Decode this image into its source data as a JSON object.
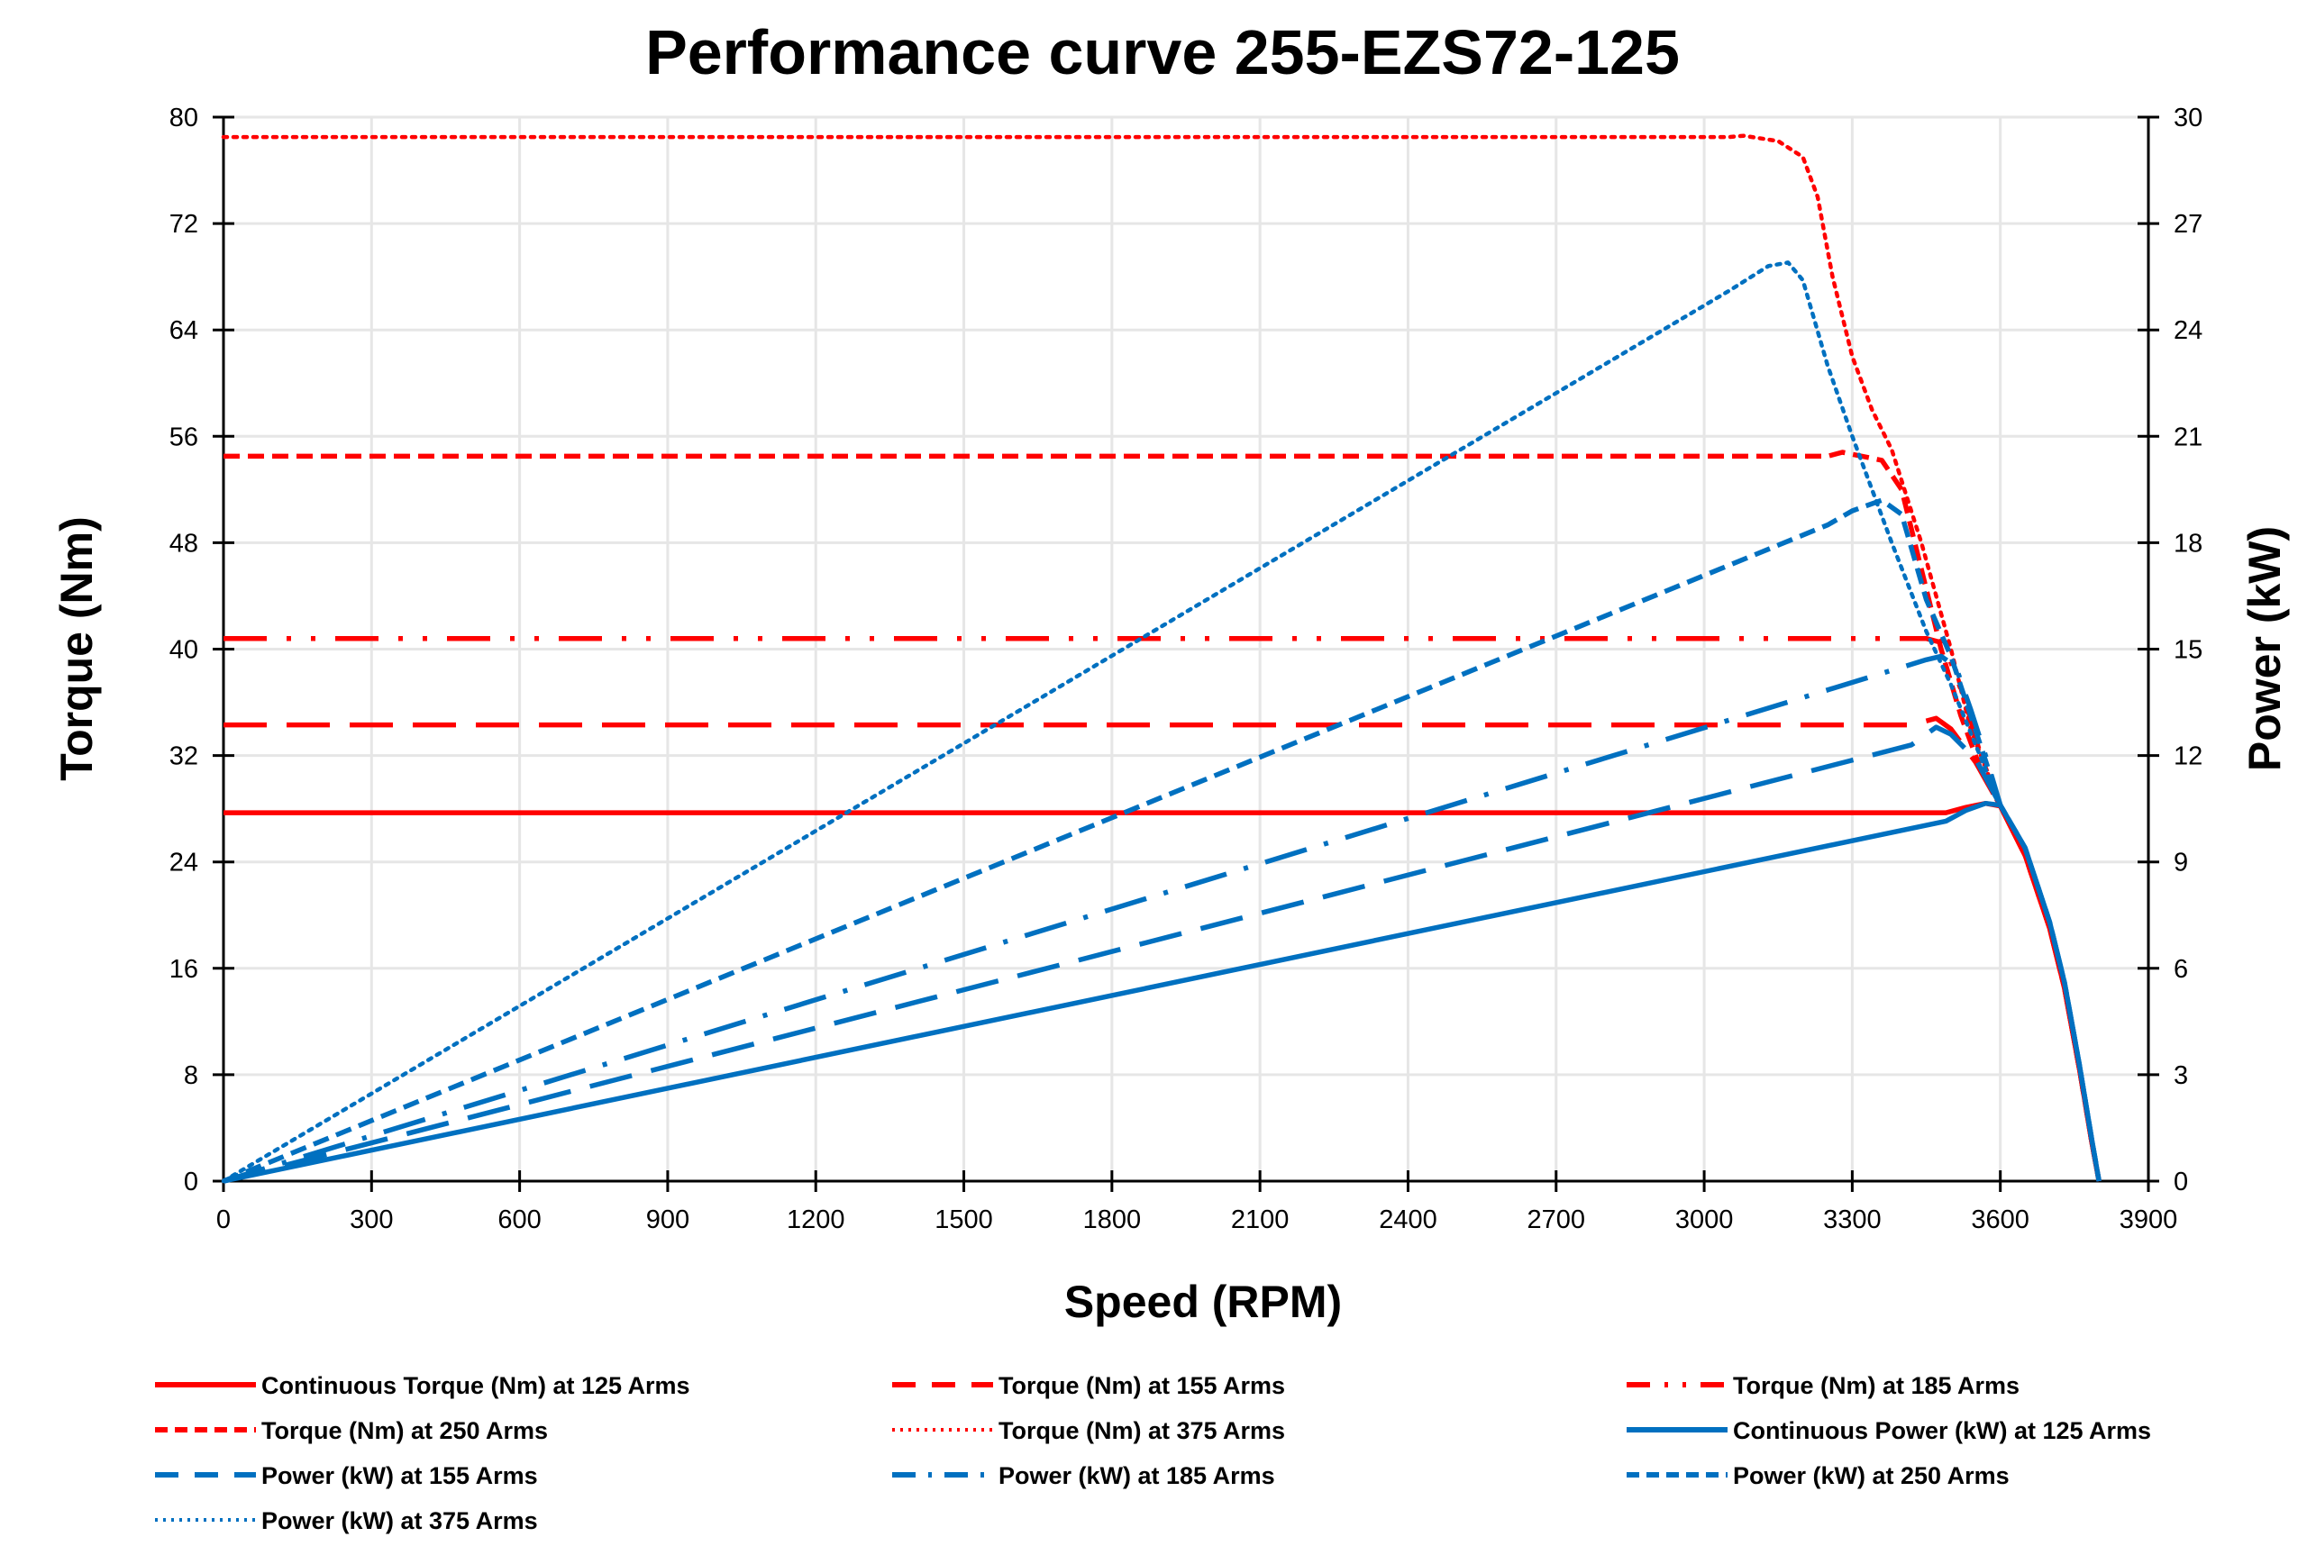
{
  "chart_data": {
    "type": "line",
    "title": "Performance curve 255-EZS72-125",
    "xlabel": "Speed (RPM)",
    "ylabel": "Torque (Nm)",
    "y2label": "Power (kW)",
    "xlim": [
      0,
      3900
    ],
    "ylim": [
      0,
      80
    ],
    "y2lim": [
      0,
      30
    ],
    "xticks": [
      0,
      300,
      600,
      900,
      1200,
      1500,
      1800,
      2100,
      2400,
      2700,
      3000,
      3300,
      3600,
      3900
    ],
    "yticks": [
      0,
      8,
      16,
      24,
      32,
      40,
      48,
      56,
      64,
      72,
      80
    ],
    "y2ticks": [
      0,
      3,
      6,
      9,
      12,
      15,
      18,
      21,
      24,
      27,
      30
    ],
    "grid": true,
    "legend_position": "bottom",
    "colors": {
      "torque": "#ff0000",
      "power": "#0070c0"
    },
    "series": [
      {
        "name": "Continuous Torque (Nm) at 125 Arms",
        "axis": "left",
        "color": "#ff0000",
        "style": "solid",
        "points": [
          [
            0,
            27.7
          ],
          [
            3490,
            27.7
          ],
          [
            3530,
            28.1
          ],
          [
            3570,
            28.4
          ],
          [
            3600,
            28.2
          ],
          [
            3650,
            24.5
          ],
          [
            3700,
            19
          ],
          [
            3730,
            14.5
          ],
          [
            3760,
            8.5
          ],
          [
            3785,
            3
          ],
          [
            3800,
            0
          ]
        ]
      },
      {
        "name": "Torque (Nm) at 155 Arms",
        "axis": "left",
        "color": "#ff0000",
        "style": "longdash",
        "points": [
          [
            0,
            34.3
          ],
          [
            3420,
            34.3
          ],
          [
            3470,
            34.8
          ],
          [
            3500,
            34
          ],
          [
            3550,
            31.5
          ],
          [
            3600,
            28.2
          ],
          [
            3650,
            24.5
          ],
          [
            3700,
            19
          ],
          [
            3730,
            14.5
          ],
          [
            3760,
            8.5
          ],
          [
            3785,
            3
          ],
          [
            3800,
            0
          ]
        ]
      },
      {
        "name": "Torque (Nm) at 185 Arms",
        "axis": "left",
        "color": "#ff0000",
        "style": "longdashdotdot",
        "points": [
          [
            0,
            40.8
          ],
          [
            3450,
            40.8
          ],
          [
            3480,
            40.5
          ],
          [
            3500,
            39
          ],
          [
            3530,
            36
          ],
          [
            3560,
            32
          ],
          [
            3600,
            28.2
          ],
          [
            3650,
            24.5
          ],
          [
            3700,
            19
          ],
          [
            3730,
            14.5
          ],
          [
            3760,
            8.5
          ],
          [
            3785,
            3
          ],
          [
            3800,
            0
          ]
        ]
      },
      {
        "name": "Torque (Nm) at 250 Arms",
        "axis": "left",
        "color": "#ff0000",
        "style": "shortdash",
        "points": [
          [
            0,
            54.5
          ],
          [
            3250,
            54.5
          ],
          [
            3280,
            54.8
          ],
          [
            3360,
            54.2
          ],
          [
            3400,
            52
          ],
          [
            3440,
            46
          ],
          [
            3480,
            40
          ],
          [
            3520,
            35
          ],
          [
            3560,
            31
          ],
          [
            3600,
            28.2
          ],
          [
            3650,
            24.5
          ],
          [
            3700,
            19
          ],
          [
            3730,
            14.5
          ],
          [
            3760,
            8.5
          ],
          [
            3785,
            3
          ],
          [
            3800,
            0
          ]
        ]
      },
      {
        "name": "Torque (Nm) at 375 Arms",
        "axis": "left",
        "color": "#ff0000",
        "style": "dotted",
        "points": [
          [
            0,
            78.5
          ],
          [
            3050,
            78.5
          ],
          [
            3080,
            78.6
          ],
          [
            3150,
            78.2
          ],
          [
            3200,
            77
          ],
          [
            3230,
            74
          ],
          [
            3260,
            68
          ],
          [
            3300,
            62
          ],
          [
            3340,
            58
          ],
          [
            3380,
            55
          ],
          [
            3440,
            48
          ],
          [
            3500,
            40
          ],
          [
            3540,
            34
          ],
          [
            3600,
            28.2
          ],
          [
            3650,
            24.5
          ],
          [
            3700,
            19
          ],
          [
            3730,
            14.5
          ],
          [
            3760,
            8.5
          ],
          [
            3785,
            3
          ],
          [
            3800,
            0
          ]
        ]
      },
      {
        "name": "Continuous Power (kW) at 125 Arms",
        "axis": "right",
        "color": "#0070c0",
        "style": "solid",
        "points": [
          [
            0,
            0
          ],
          [
            3490,
            10.15
          ],
          [
            3530,
            10.45
          ],
          [
            3570,
            10.65
          ],
          [
            3600,
            10.6
          ],
          [
            3650,
            9.4
          ],
          [
            3700,
            7.3
          ],
          [
            3730,
            5.6
          ],
          [
            3760,
            3.3
          ],
          [
            3785,
            1.2
          ],
          [
            3800,
            0
          ]
        ]
      },
      {
        "name": "Power (kW) at 155 Arms",
        "axis": "right",
        "color": "#0070c0",
        "style": "longdash",
        "points": [
          [
            0,
            0
          ],
          [
            3420,
            12.3
          ],
          [
            3470,
            12.8
          ],
          [
            3500,
            12.6
          ],
          [
            3550,
            11.9
          ],
          [
            3600,
            10.6
          ],
          [
            3650,
            9.4
          ],
          [
            3700,
            7.3
          ],
          [
            3730,
            5.6
          ],
          [
            3760,
            3.3
          ],
          [
            3785,
            1.2
          ],
          [
            3800,
            0
          ]
        ]
      },
      {
        "name": "Power (kW) at 185 Arms",
        "axis": "right",
        "color": "#0070c0",
        "style": "dashdot",
        "points": [
          [
            0,
            0
          ],
          [
            3450,
            14.7
          ],
          [
            3480,
            14.8
          ],
          [
            3510,
            14.5
          ],
          [
            3540,
            13.3
          ],
          [
            3570,
            12
          ],
          [
            3600,
            10.6
          ],
          [
            3650,
            9.4
          ],
          [
            3700,
            7.3
          ],
          [
            3730,
            5.6
          ],
          [
            3760,
            3.3
          ],
          [
            3785,
            1.2
          ],
          [
            3800,
            0
          ]
        ]
      },
      {
        "name": "Power (kW) at 250 Arms",
        "axis": "right",
        "color": "#0070c0",
        "style": "shortdash",
        "points": [
          [
            0,
            0
          ],
          [
            3250,
            18.5
          ],
          [
            3300,
            18.9
          ],
          [
            3360,
            19.2
          ],
          [
            3400,
            18.8
          ],
          [
            3450,
            16.4
          ],
          [
            3500,
            14.8
          ],
          [
            3550,
            12.7
          ],
          [
            3600,
            10.6
          ],
          [
            3650,
            9.4
          ],
          [
            3700,
            7.3
          ],
          [
            3730,
            5.6
          ],
          [
            3760,
            3.3
          ],
          [
            3785,
            1.2
          ],
          [
            3800,
            0
          ]
        ]
      },
      {
        "name": "Power (kW) at 375 Arms",
        "axis": "right",
        "color": "#0070c0",
        "style": "dotted",
        "points": [
          [
            0,
            0
          ],
          [
            3050,
            25.1
          ],
          [
            3130,
            25.8
          ],
          [
            3170,
            25.9
          ],
          [
            3200,
            25.4
          ],
          [
            3250,
            23
          ],
          [
            3300,
            21
          ],
          [
            3380,
            18
          ],
          [
            3450,
            15.5
          ],
          [
            3500,
            14
          ],
          [
            3550,
            12.3
          ],
          [
            3600,
            10.6
          ],
          [
            3650,
            9.4
          ],
          [
            3700,
            7.3
          ],
          [
            3730,
            5.6
          ],
          [
            3760,
            3.3
          ],
          [
            3785,
            1.2
          ],
          [
            3800,
            0
          ]
        ]
      }
    ]
  }
}
